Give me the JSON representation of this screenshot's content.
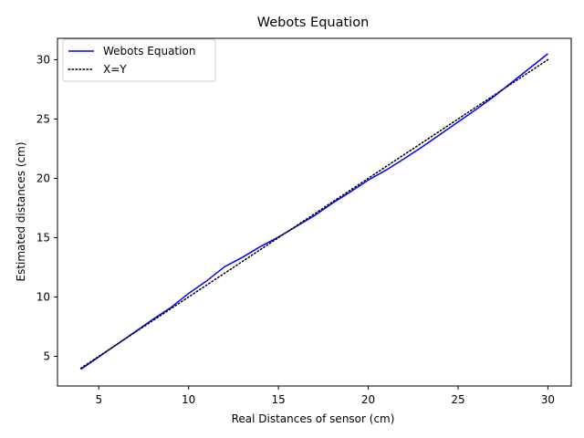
{
  "chart_data": {
    "type": "line",
    "title": "Webots Equation",
    "xlabel": "Real Distances of sensor (cm)",
    "ylabel": "Estimated distances (cm)",
    "xlim": [
      2.7,
      31.3
    ],
    "ylim": [
      2.5,
      31.8
    ],
    "xticks": [
      5,
      10,
      15,
      20,
      25,
      30
    ],
    "yticks": [
      5,
      10,
      15,
      20,
      25,
      30
    ],
    "grid": false,
    "legend_position": "top-left",
    "series": [
      {
        "name": "Webots Equation",
        "color": "#0000ff",
        "style": "solid",
        "x": [
          4,
          5,
          6,
          7,
          8,
          9,
          10,
          11,
          12,
          13,
          14,
          15,
          16,
          17,
          18,
          19,
          20,
          21,
          22,
          23,
          24,
          25,
          26,
          27,
          28,
          29,
          30
        ],
        "y": [
          3.9,
          4.95,
          6.0,
          7.05,
          8.1,
          9.1,
          10.3,
          11.35,
          12.55,
          13.35,
          14.25,
          15.05,
          15.95,
          16.85,
          17.9,
          18.85,
          19.85,
          20.7,
          21.65,
          22.65,
          23.7,
          24.75,
          25.8,
          26.9,
          28.1,
          29.3,
          30.5
        ]
      },
      {
        "name": "X=Y",
        "color": "#000000",
        "style": "dotted",
        "x": [
          4,
          30
        ],
        "y": [
          4,
          30
        ]
      }
    ]
  }
}
